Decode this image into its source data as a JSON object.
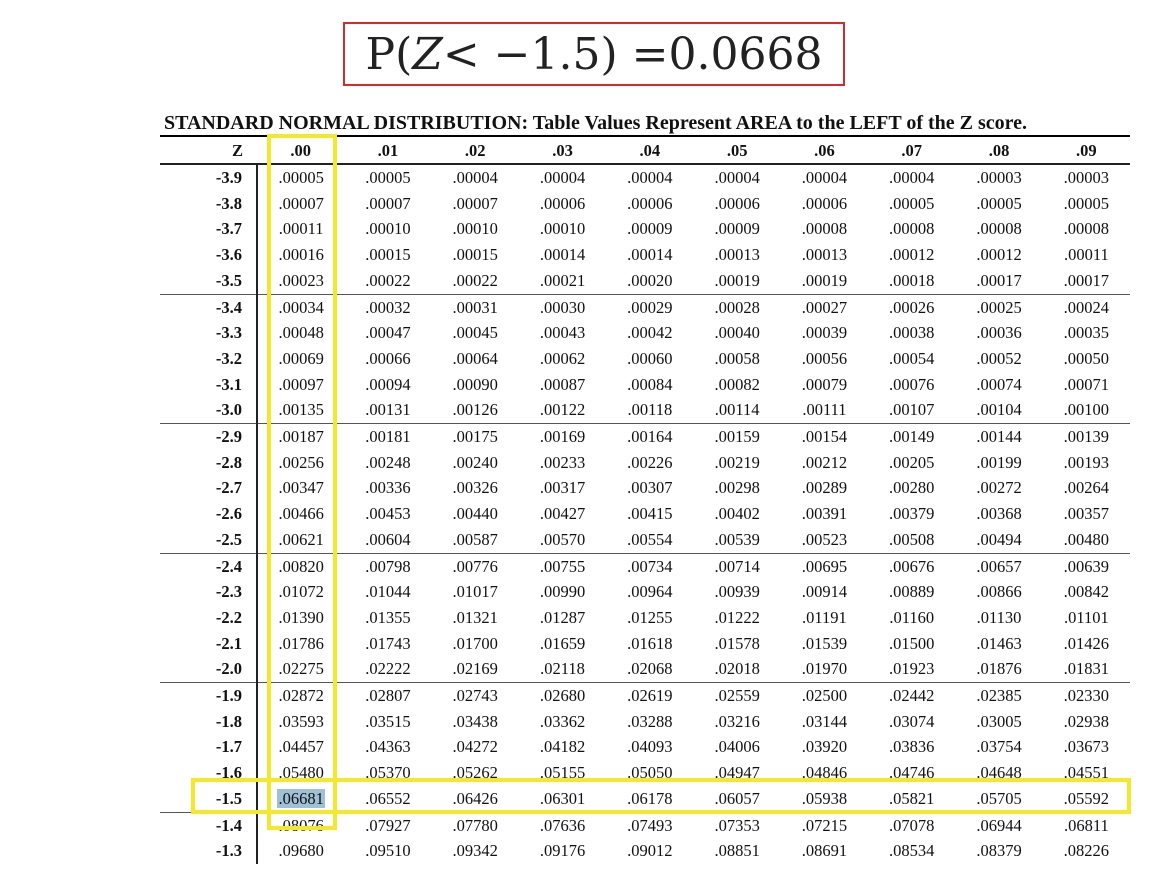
{
  "formula": {
    "prefix": "P(",
    "var": "Z",
    "mid": " < −1.5) = ",
    "value": "0.0668"
  },
  "table": {
    "title": "STANDARD NORMAL DISTRIBUTION: Table Values Represent AREA to the LEFT of the Z score.",
    "z_header": "Z",
    "columns": [
      ".00",
      ".01",
      ".02",
      ".03",
      ".04",
      ".05",
      ".06",
      ".07",
      ".08",
      ".09"
    ],
    "rows": [
      {
        "z": "-3.9",
        "values": [
          ".00005",
          ".00005",
          ".00004",
          ".00004",
          ".00004",
          ".00004",
          ".00004",
          ".00004",
          ".00003",
          ".00003"
        ]
      },
      {
        "z": "-3.8",
        "values": [
          ".00007",
          ".00007",
          ".00007",
          ".00006",
          ".00006",
          ".00006",
          ".00006",
          ".00005",
          ".00005",
          ".00005"
        ]
      },
      {
        "z": "-3.7",
        "values": [
          ".00011",
          ".00010",
          ".00010",
          ".00010",
          ".00009",
          ".00009",
          ".00008",
          ".00008",
          ".00008",
          ".00008"
        ]
      },
      {
        "z": "-3.6",
        "values": [
          ".00016",
          ".00015",
          ".00015",
          ".00014",
          ".00014",
          ".00013",
          ".00013",
          ".00012",
          ".00012",
          ".00011"
        ]
      },
      {
        "z": "-3.5",
        "values": [
          ".00023",
          ".00022",
          ".00022",
          ".00021",
          ".00020",
          ".00019",
          ".00019",
          ".00018",
          ".00017",
          ".00017"
        ]
      },
      {
        "z": "-3.4",
        "values": [
          ".00034",
          ".00032",
          ".00031",
          ".00030",
          ".00029",
          ".00028",
          ".00027",
          ".00026",
          ".00025",
          ".00024"
        ]
      },
      {
        "z": "-3.3",
        "values": [
          ".00048",
          ".00047",
          ".00045",
          ".00043",
          ".00042",
          ".00040",
          ".00039",
          ".00038",
          ".00036",
          ".00035"
        ]
      },
      {
        "z": "-3.2",
        "values": [
          ".00069",
          ".00066",
          ".00064",
          ".00062",
          ".00060",
          ".00058",
          ".00056",
          ".00054",
          ".00052",
          ".00050"
        ]
      },
      {
        "z": "-3.1",
        "values": [
          ".00097",
          ".00094",
          ".00090",
          ".00087",
          ".00084",
          ".00082",
          ".00079",
          ".00076",
          ".00074",
          ".00071"
        ]
      },
      {
        "z": "-3.0",
        "values": [
          ".00135",
          ".00131",
          ".00126",
          ".00122",
          ".00118",
          ".00114",
          ".00111",
          ".00107",
          ".00104",
          ".00100"
        ]
      },
      {
        "z": "-2.9",
        "values": [
          ".00187",
          ".00181",
          ".00175",
          ".00169",
          ".00164",
          ".00159",
          ".00154",
          ".00149",
          ".00144",
          ".00139"
        ]
      },
      {
        "z": "-2.8",
        "values": [
          ".00256",
          ".00248",
          ".00240",
          ".00233",
          ".00226",
          ".00219",
          ".00212",
          ".00205",
          ".00199",
          ".00193"
        ]
      },
      {
        "z": "-2.7",
        "values": [
          ".00347",
          ".00336",
          ".00326",
          ".00317",
          ".00307",
          ".00298",
          ".00289",
          ".00280",
          ".00272",
          ".00264"
        ]
      },
      {
        "z": "-2.6",
        "values": [
          ".00466",
          ".00453",
          ".00440",
          ".00427",
          ".00415",
          ".00402",
          ".00391",
          ".00379",
          ".00368",
          ".00357"
        ]
      },
      {
        "z": "-2.5",
        "values": [
          ".00621",
          ".00604",
          ".00587",
          ".00570",
          ".00554",
          ".00539",
          ".00523",
          ".00508",
          ".00494",
          ".00480"
        ]
      },
      {
        "z": "-2.4",
        "values": [
          ".00820",
          ".00798",
          ".00776",
          ".00755",
          ".00734",
          ".00714",
          ".00695",
          ".00676",
          ".00657",
          ".00639"
        ]
      },
      {
        "z": "-2.3",
        "values": [
          ".01072",
          ".01044",
          ".01017",
          ".00990",
          ".00964",
          ".00939",
          ".00914",
          ".00889",
          ".00866",
          ".00842"
        ]
      },
      {
        "z": "-2.2",
        "values": [
          ".01390",
          ".01355",
          ".01321",
          ".01287",
          ".01255",
          ".01222",
          ".01191",
          ".01160",
          ".01130",
          ".01101"
        ]
      },
      {
        "z": "-2.1",
        "values": [
          ".01786",
          ".01743",
          ".01700",
          ".01659",
          ".01618",
          ".01578",
          ".01539",
          ".01500",
          ".01463",
          ".01426"
        ]
      },
      {
        "z": "-2.0",
        "values": [
          ".02275",
          ".02222",
          ".02169",
          ".02118",
          ".02068",
          ".02018",
          ".01970",
          ".01923",
          ".01876",
          ".01831"
        ]
      },
      {
        "z": "-1.9",
        "values": [
          ".02872",
          ".02807",
          ".02743",
          ".02680",
          ".02619",
          ".02559",
          ".02500",
          ".02442",
          ".02385",
          ".02330"
        ]
      },
      {
        "z": "-1.8",
        "values": [
          ".03593",
          ".03515",
          ".03438",
          ".03362",
          ".03288",
          ".03216",
          ".03144",
          ".03074",
          ".03005",
          ".02938"
        ]
      },
      {
        "z": "-1.7",
        "values": [
          ".04457",
          ".04363",
          ".04272",
          ".04182",
          ".04093",
          ".04006",
          ".03920",
          ".03836",
          ".03754",
          ".03673"
        ]
      },
      {
        "z": "-1.6",
        "values": [
          ".05480",
          ".05370",
          ".05262",
          ".05155",
          ".05050",
          ".04947",
          ".04846",
          ".04746",
          ".04648",
          ".04551"
        ]
      },
      {
        "z": "-1.5",
        "values": [
          ".06681",
          ".06552",
          ".06426",
          ".06301",
          ".06178",
          ".06057",
          ".05938",
          ".05821",
          ".05705",
          ".05592"
        ]
      },
      {
        "z": "-1.4",
        "values": [
          ".08076",
          ".07927",
          ".07780",
          ".07636",
          ".07493",
          ".07353",
          ".07215",
          ".07078",
          ".06944",
          ".06811"
        ]
      },
      {
        "z": "-1.3",
        "values": [
          ".09680",
          ".09510",
          ".09342",
          ".09176",
          ".09012",
          ".08851",
          ".08691",
          ".08534",
          ".08379",
          ".08226"
        ]
      }
    ],
    "highlight": {
      "row_z": "-1.5",
      "column": ".00",
      "value": ".06681"
    }
  },
  "colors": {
    "box_border": "#d62a2a",
    "highlight_outline": "#f3e82c",
    "selected_cell": "#9fc0d6"
  }
}
